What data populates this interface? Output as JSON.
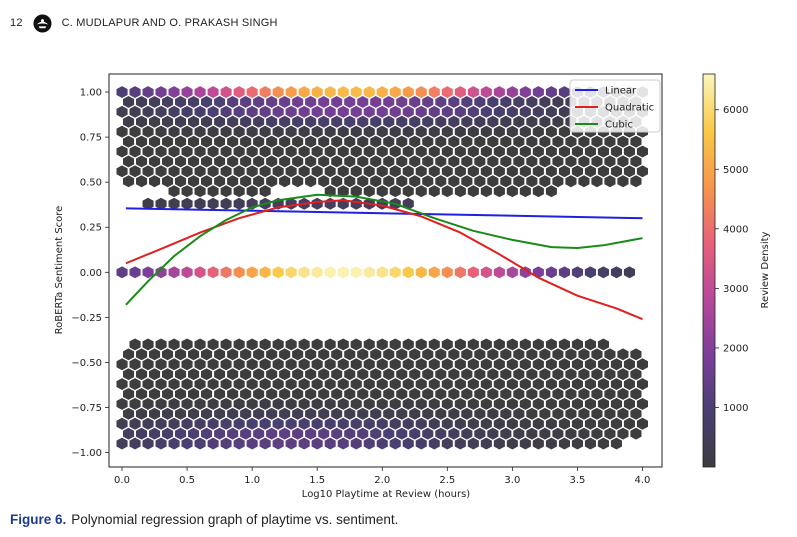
{
  "header": {
    "page_number": "12",
    "authors": "C. MUDLAPUR AND O. PRAKASH SINGH",
    "logo_icon": "publisher-logo-icon"
  },
  "caption": {
    "label": "Figure 6.",
    "text": "Polynomial regression graph of playtime vs. sentiment."
  },
  "chart_data": {
    "type": "hexbin",
    "xlabel": "Log10 Playtime at Review (hours)",
    "ylabel": "RoBERTa Sentiment Score",
    "xlim": [
      -0.1,
      4.15
    ],
    "ylim": [
      -1.08,
      1.1
    ],
    "xticks": [
      0.0,
      0.5,
      1.0,
      1.5,
      2.0,
      2.5,
      3.0,
      3.5,
      4.0
    ],
    "xtick_labels": [
      "0.0",
      "0.5",
      "1.0",
      "1.5",
      "2.0",
      "2.5",
      "3.0",
      "3.5",
      "4.0"
    ],
    "yticks": [
      1.0,
      0.75,
      0.5,
      0.25,
      0.0,
      -0.25,
      -0.5,
      -0.75,
      -1.0
    ],
    "ytick_labels": [
      "1.00",
      "0.75",
      "0.50",
      "0.25",
      "0.00",
      "−0.25",
      "−0.50",
      "−0.75",
      "−1.00"
    ],
    "colorbar": {
      "label": "Review Density",
      "min": 0,
      "max": 6600,
      "ticks": [
        1000,
        2000,
        3000,
        4000,
        5000,
        6000
      ],
      "tick_labels": [
        "1000",
        "2000",
        "3000",
        "4000",
        "5000",
        "6000"
      ],
      "colormap": [
        "#3d3d3d",
        "#4a3f73",
        "#7b3f9a",
        "#b8489a",
        "#e8617a",
        "#f7964a",
        "#f9c948",
        "#fbf6bd"
      ]
    },
    "legend_position": "top-right",
    "series": [
      {
        "name": "Linear",
        "color": "#2020e0",
        "x": [
          0.03,
          4.0
        ],
        "y": [
          0.355,
          0.3
        ]
      },
      {
        "name": "Quadratic",
        "color": "#e02020",
        "x": [
          0.03,
          0.3,
          0.6,
          0.9,
          1.2,
          1.5,
          1.7,
          2.0,
          2.3,
          2.6,
          2.9,
          3.2,
          3.5,
          3.8,
          4.0
        ],
        "y": [
          0.05,
          0.13,
          0.22,
          0.3,
          0.36,
          0.39,
          0.4,
          0.37,
          0.31,
          0.22,
          0.1,
          -0.03,
          -0.13,
          -0.2,
          -0.26
        ]
      },
      {
        "name": "Cubic",
        "color": "#1a8a1a",
        "x": [
          0.03,
          0.2,
          0.4,
          0.6,
          0.8,
          1.0,
          1.2,
          1.5,
          1.8,
          2.1,
          2.4,
          2.7,
          3.0,
          3.3,
          3.5,
          3.7,
          4.0
        ],
        "y": [
          -0.18,
          -0.05,
          0.09,
          0.2,
          0.29,
          0.36,
          0.4,
          0.43,
          0.42,
          0.38,
          0.3,
          0.23,
          0.18,
          0.14,
          0.135,
          0.15,
          0.19
        ]
      }
    ],
    "hexbin_grid": {
      "nx": 40,
      "bands": [
        {
          "y_min": 0.45,
          "y_max": 1.0,
          "peak_y": 1.0,
          "peak_x": 1.75,
          "peak_density": 5400
        },
        {
          "y_min": 0.34,
          "y_max": 0.38,
          "peak_y": 0.36,
          "peak_x": 1.5,
          "peak_density": 600
        },
        {
          "y_min": 0.0,
          "y_max": 0.0,
          "peak_y": 0.0,
          "peak_x": 1.7,
          "peak_density": 6500
        },
        {
          "y_min": -1.0,
          "y_max": -0.4,
          "peak_y": -0.92,
          "peak_x": 1.3,
          "peak_density": 1400
        }
      ]
    }
  }
}
